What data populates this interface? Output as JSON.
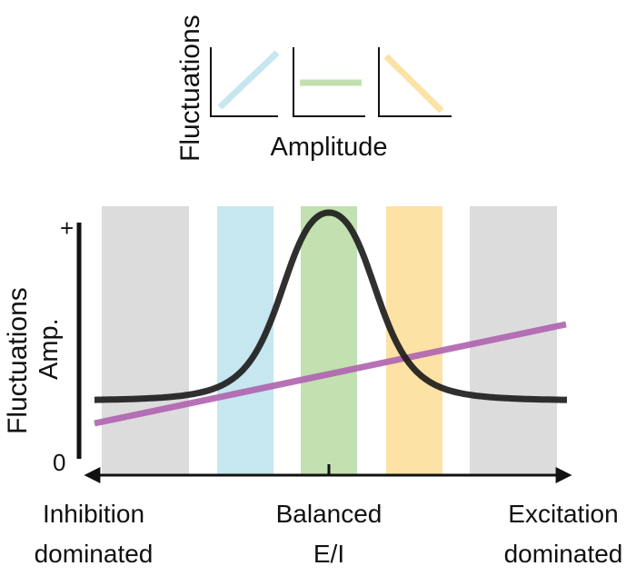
{
  "inset": {
    "ylabel": "Fluctuations",
    "xlabel": "Amplitude",
    "panels": [
      {
        "name": "increasing",
        "color": "#c6e6f0"
      },
      {
        "name": "flat",
        "color": "#c2e0b0"
      },
      {
        "name": "decreasing",
        "color": "#fde2a6"
      }
    ]
  },
  "main": {
    "ylabel": "Fluctuations",
    "ylabel_secondary": "Amp.",
    "ytick_top": "+",
    "ytick_bottom": "0",
    "x_left_label": [
      "Inhibition",
      "dominated"
    ],
    "x_center_label": [
      "Balanced",
      "E/I"
    ],
    "x_right_label": [
      "Excitation",
      "dominated"
    ],
    "bands": [
      {
        "name": "inhibition-band",
        "color": "#dcdcdc"
      },
      {
        "name": "blue-band",
        "color": "#c6e6f0"
      },
      {
        "name": "green-band",
        "color": "#c2e0b0"
      },
      {
        "name": "orange-band",
        "color": "#fde2a6"
      },
      {
        "name": "excitation-band",
        "color": "#dcdcdc"
      }
    ],
    "curve_colors": {
      "fluctuations": "#1a1a1a",
      "amplitude": "#b063b0"
    }
  }
}
